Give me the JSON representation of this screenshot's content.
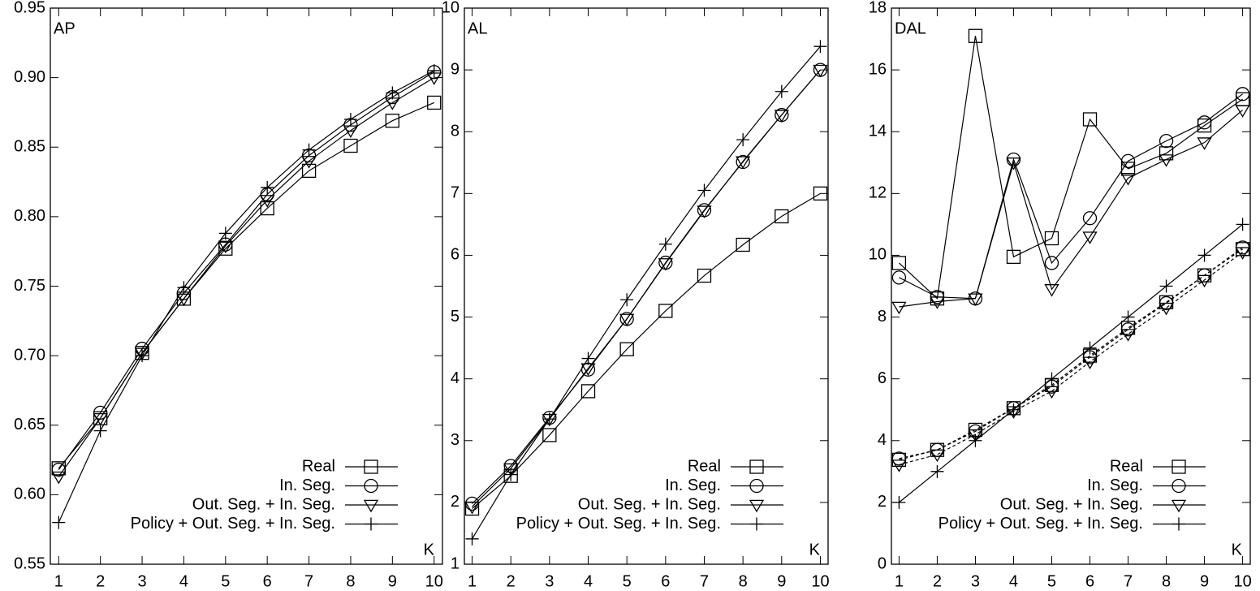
{
  "chart_data": [
    {
      "type": "line",
      "title": "AP",
      "xlabel": "K",
      "legend": "lower right",
      "x": [
        1,
        2,
        3,
        4,
        5,
        6,
        7,
        8,
        9,
        10
      ],
      "xlim": [
        0.8,
        10.2
      ],
      "xticks": [
        1,
        2,
        3,
        4,
        5,
        6,
        7,
        8,
        9,
        10
      ],
      "ylim": [
        0.55,
        0.95
      ],
      "yticks": [
        0.55,
        {
          "value": 0.6,
          "label": "0.60"
        },
        0.65,
        {
          "value": 0.7,
          "label": "0.70"
        },
        0.75,
        {
          "value": 0.8,
          "label": "0.80"
        },
        0.85,
        {
          "value": 0.9,
          "label": "0.90"
        },
        0.95
      ],
      "series": [
        {
          "name": "Real",
          "color": "#000000",
          "marker": "square",
          "linestyle": "solid",
          "values": [
            0.619,
            0.655,
            0.702,
            0.741,
            0.777,
            0.806,
            0.833,
            0.851,
            0.869,
            0.882
          ]
        },
        {
          "name": "In. Seg.",
          "color": "#000000",
          "marker": "circle",
          "linestyle": "solid",
          "values": [
            0.618,
            0.659,
            0.705,
            0.745,
            0.78,
            0.816,
            0.844,
            0.866,
            0.886,
            0.904
          ]
        },
        {
          "name": "Out. Seg. + In. Seg.",
          "color": "#000000",
          "marker": "triangle",
          "linestyle": "solid",
          "values": [
            0.613,
            0.655,
            0.702,
            0.741,
            0.779,
            0.812,
            0.84,
            0.862,
            0.882,
            0.9
          ]
        },
        {
          "name": "Policy + Out. Seg. + In. Seg.",
          "color": "#000000",
          "marker": "plus",
          "linestyle": "solid",
          "values": [
            0.58,
            0.646,
            0.7,
            0.749,
            0.788,
            0.821,
            0.848,
            0.87,
            0.889,
            0.905
          ]
        }
      ]
    },
    {
      "type": "line",
      "title": "AL",
      "xlabel": "K",
      "legend": "lower right",
      "x": [
        1,
        2,
        3,
        4,
        5,
        6,
        7,
        8,
        9,
        10
      ],
      "xlim": [
        0.8,
        10.2
      ],
      "xticks": [
        1,
        2,
        3,
        4,
        5,
        6,
        7,
        8,
        9,
        10
      ],
      "ylim": [
        1,
        10
      ],
      "yticks": [
        1,
        2,
        3,
        4,
        5,
        6,
        7,
        8,
        9,
        10
      ],
      "series": [
        {
          "name": "Real",
          "color": "#000000",
          "marker": "square",
          "linestyle": "solid",
          "values": [
            1.9,
            2.43,
            3.09,
            3.8,
            4.48,
            5.1,
            5.67,
            6.17,
            6.63,
            7.0
          ]
        },
        {
          "name": "In. Seg.",
          "color": "#000000",
          "marker": "circle",
          "linestyle": "solid",
          "values": [
            1.98,
            2.59,
            3.37,
            4.15,
            4.97,
            5.88,
            6.73,
            7.51,
            8.27,
            9.0
          ]
        },
        {
          "name": "Out. Seg. + In. Seg.",
          "color": "#000000",
          "marker": "triangle",
          "linestyle": "solid",
          "values": [
            1.93,
            2.55,
            3.35,
            4.17,
            4.97,
            5.87,
            6.72,
            7.52,
            8.27,
            9.0
          ]
        },
        {
          "name": "Policy + Out. Seg. + In. Seg.",
          "color": "#000000",
          "marker": "plus",
          "linestyle": "solid",
          "values": [
            1.41,
            2.45,
            3.35,
            4.33,
            5.28,
            6.18,
            7.05,
            7.87,
            8.65,
            9.38
          ]
        }
      ]
    },
    {
      "type": "line",
      "title": "DAL",
      "xlabel": "K",
      "legend": "lower right",
      "x": [
        1,
        2,
        3,
        4,
        5,
        6,
        7,
        8,
        9,
        10
      ],
      "xlim": [
        0.8,
        10.2
      ],
      "xticks": [
        1,
        2,
        3,
        4,
        5,
        6,
        7,
        8,
        9,
        10
      ],
      "ylim": [
        0,
        18
      ],
      "yticks": [
        0,
        2,
        4,
        6,
        8,
        10,
        12,
        14,
        16,
        18
      ],
      "series": [
        {
          "name": "Real",
          "color": "#000000",
          "marker": "square",
          "linestyle": "solid",
          "values": [
            9.75,
            8.6,
            17.1,
            9.95,
            10.55,
            14.4,
            12.8,
            13.3,
            14.2,
            15.05
          ]
        },
        {
          "name": "In. Seg.",
          "color": "#000000",
          "marker": "circle",
          "linestyle": "solid",
          "values": [
            9.28,
            8.65,
            8.6,
            13.1,
            9.75,
            11.2,
            13.05,
            13.7,
            14.3,
            15.22
          ]
        },
        {
          "name": "Out. Seg. + In. Seg.",
          "color": "#000000",
          "marker": "triangle",
          "linestyle": "solid",
          "values": [
            8.33,
            8.5,
            8.6,
            13.0,
            8.9,
            10.6,
            12.5,
            13.1,
            13.65,
            14.7
          ]
        },
        {
          "name": "Policy + Out. Seg. + In. Seg.",
          "color": "#000000",
          "marker": "plus",
          "linestyle": "solid",
          "values": [
            2.0,
            3.0,
            4.0,
            5.0,
            6.0,
            7.0,
            8.0,
            9.0,
            10.0,
            11.0
          ]
        },
        {
          "name": "Real",
          "color": "#000000",
          "marker": "square",
          "linestyle": "dashed",
          "values": [
            3.38,
            3.7,
            4.35,
            5.05,
            5.8,
            6.75,
            7.65,
            8.48,
            9.35,
            10.2
          ]
        },
        {
          "name": "In. Seg.",
          "color": "#000000",
          "marker": "circle",
          "linestyle": "dashed",
          "values": [
            3.42,
            3.7,
            4.3,
            5.05,
            5.75,
            6.7,
            7.6,
            8.45,
            9.35,
            10.25
          ]
        },
        {
          "name": "Out. Seg. + In. Seg.",
          "color": "#000000",
          "marker": "triangle",
          "linestyle": "dashed",
          "values": [
            3.22,
            3.55,
            4.2,
            4.95,
            5.6,
            6.55,
            7.45,
            8.3,
            9.2,
            10.1
          ]
        }
      ]
    }
  ]
}
